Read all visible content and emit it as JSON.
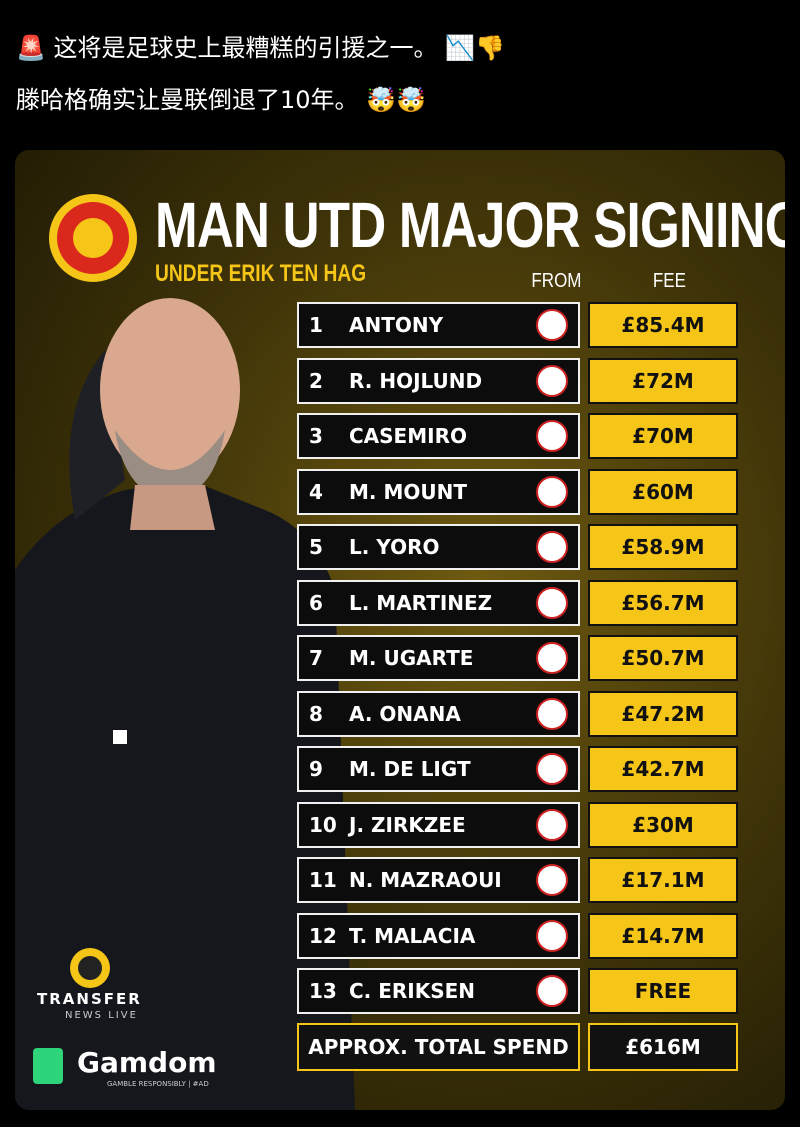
{
  "post": {
    "lines": [
      "🚨 这将是足球史上最糟糕的引援之一。 📉👎",
      "滕哈格确实让曼联倒退了10年。 🤯🤯"
    ]
  },
  "graphic": {
    "title": "MAN UTD MAJOR SIGNINGS",
    "subtitle": "UNDER ERIK TEN HAG",
    "headers": [
      "FROM",
      "FEE"
    ],
    "rows": [
      [
        "1",
        "ANTONY",
        "£85.4M"
      ],
      [
        "2",
        "R. HOJLUND",
        "£72M"
      ],
      [
        "3",
        "CASEMIRO",
        "£70M"
      ],
      [
        "4",
        "M. MOUNT",
        "£60M"
      ],
      [
        "5",
        "L. YORO",
        "£58.9M"
      ],
      [
        "6",
        "L. MARTINEZ",
        "£56.7M"
      ],
      [
        "7",
        "M. UGARTE",
        "£50.7M"
      ],
      [
        "8",
        "A. ONANA",
        "£47.2M"
      ],
      [
        "9",
        "M. DE LIGT",
        "£42.7M"
      ],
      [
        "10",
        "J. ZIRKZEE",
        "£30M"
      ],
      [
        "11",
        "N. MAZRAOUI",
        "£17.1M"
      ],
      [
        "12",
        "T. MALACIA",
        "£14.7M"
      ],
      [
        "13",
        "C. ERIKSEN",
        "FREE"
      ]
    ],
    "total_label": "APPROX. TOTAL SPEND",
    "total_value": "£616M",
    "brand": {
      "name1": "TRANSFER",
      "name2": "NEWS LIVE",
      "sponsor": "Gamdom",
      "sponsor_note": "GAMBLE RESPONSIBLY | #AD"
    }
  }
}
